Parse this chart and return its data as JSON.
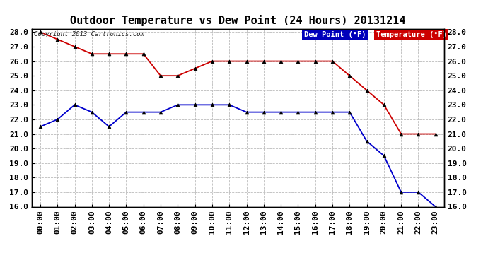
{
  "title": "Outdoor Temperature vs Dew Point (24 Hours) 20131214",
  "copyright": "Copyright 2013 Cartronics.com",
  "background_color": "#ffffff",
  "plot_bg_color": "#ffffff",
  "grid_color": "#bbbbbb",
  "time_labels": [
    "00:00",
    "01:00",
    "02:00",
    "03:00",
    "04:00",
    "05:00",
    "06:00",
    "07:00",
    "08:00",
    "09:00",
    "10:00",
    "11:00",
    "12:00",
    "13:00",
    "14:00",
    "15:00",
    "16:00",
    "17:00",
    "18:00",
    "19:00",
    "20:00",
    "21:00",
    "22:00",
    "23:00"
  ],
  "temperature_data": [
    28.0,
    27.5,
    27.0,
    26.5,
    26.5,
    26.5,
    26.5,
    25.0,
    25.0,
    25.5,
    26.0,
    26.0,
    26.0,
    26.0,
    26.0,
    26.0,
    26.0,
    26.0,
    25.0,
    24.0,
    23.0,
    21.0,
    21.0,
    21.0
  ],
  "dewpoint_data": [
    21.5,
    22.0,
    23.0,
    22.5,
    21.5,
    22.5,
    22.5,
    22.5,
    23.0,
    23.0,
    23.0,
    23.0,
    22.5,
    22.5,
    22.5,
    22.5,
    22.5,
    22.5,
    22.5,
    20.5,
    19.5,
    17.0,
    17.0,
    16.0
  ],
  "temp_color": "#cc0000",
  "dewpoint_color": "#0000cc",
  "marker_color": "#000000",
  "ylim_min": 16.0,
  "ylim_max": 28.0,
  "ytick_step": 1.0,
  "legend_dew_label": "Dew Point (°F)",
  "legend_temp_label": "Temperature (°F)",
  "legend_dew_bg": "#0000bb",
  "legend_temp_bg": "#cc0000",
  "legend_text_color": "#ffffff",
  "border_color": "#000000",
  "title_fontsize": 11,
  "tick_fontsize": 8,
  "copyright_fontsize": 6.5
}
